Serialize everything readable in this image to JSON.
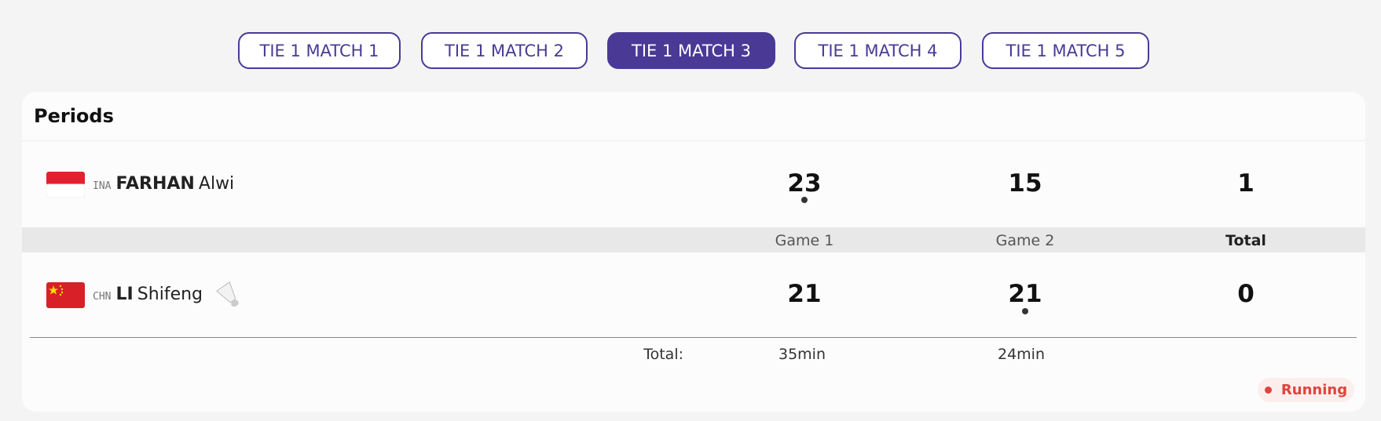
{
  "tabs": {
    "items": [
      "TIE 1 MATCH 1",
      "TIE 1 MATCH 2",
      "TIE 1 MATCH 3",
      "TIE 1 MATCH 4",
      "TIE 1 MATCH 5"
    ],
    "active": 2
  },
  "panel": {
    "title": "Periods",
    "players": [
      {
        "country": "INA",
        "last_name": "FARHAN",
        "first_name": "Alwi",
        "scores": [
          23,
          15,
          1
        ]
      },
      {
        "country": "CHN",
        "last_name": "LI",
        "first_name": "Shifeng",
        "scores": [
          21,
          21,
          0
        ]
      }
    ],
    "columns": [
      "Game 1",
      "Game 2",
      "Total"
    ],
    "duration": {
      "label": "Total:",
      "values": [
        "35min",
        "24min"
      ]
    },
    "status": "Running"
  }
}
